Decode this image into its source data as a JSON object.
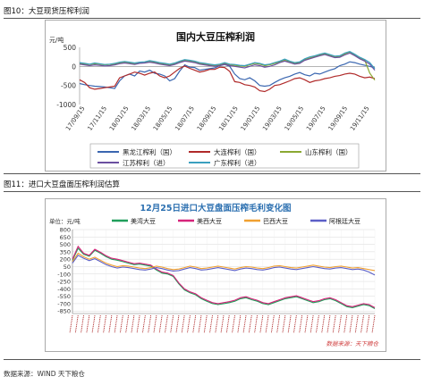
{
  "figure1": {
    "caption": "图10：大豆现货压榨利润",
    "chart_data": {
      "type": "line",
      "title": "国内大豆压榨利润",
      "ylabel": "元/吨",
      "ylim": [
        -1000,
        500
      ],
      "yticks": [
        500,
        0,
        -500,
        -1000
      ],
      "xticks": [
        "17/09/15",
        "17/11/15",
        "18/01/15",
        "18/03/15",
        "18/05/15",
        "18/07/15",
        "18/09/15",
        "18/11/15",
        "19/01/15",
        "19/03/15",
        "19/05/15",
        "19/07/15",
        "19/09/15",
        "19/11/15"
      ],
      "grid": false,
      "legend_position": "bottom",
      "series": [
        {
          "name": "黑龙江榨利（国）",
          "color": "#3a66b0",
          "values": [
            -450,
            -480,
            -500,
            -520,
            -530,
            -540,
            -560,
            -580,
            -380,
            -250,
            -200,
            -250,
            -120,
            -150,
            -100,
            -180,
            -200,
            -250,
            -380,
            -320,
            -120,
            40,
            -20,
            -30,
            -100,
            -80,
            -60,
            -40,
            20,
            50,
            0,
            -200,
            -320,
            -350,
            -300,
            -380,
            -500,
            -520,
            -500,
            -420,
            -350,
            -300,
            -260,
            -200,
            -160,
            -220,
            -250,
            -180,
            -200,
            -150,
            -100,
            -60,
            20,
            60,
            120,
            100,
            60,
            30,
            0,
            -40
          ]
        },
        {
          "name": "大连榨利（国）",
          "color": "#b02a2a",
          "values": [
            -350,
            -420,
            -560,
            -600,
            -580,
            -560,
            -540,
            -520,
            -300,
            -250,
            -200,
            -150,
            -180,
            -230,
            -180,
            -150,
            -250,
            -300,
            -250,
            -150,
            -50,
            10,
            -50,
            -100,
            -150,
            -120,
            -80,
            -80,
            -20,
            -30,
            -130,
            -400,
            -420,
            -480,
            -500,
            -540,
            -640,
            -660,
            -600,
            -500,
            -480,
            -430,
            -380,
            -320,
            -300,
            -350,
            -420,
            -380,
            -360,
            -320,
            -300,
            -260,
            -240,
            -200,
            -180,
            -200,
            -260,
            -300,
            -280,
            -320
          ]
        },
        {
          "name": "山东榨利（国）",
          "color": "#8aa832",
          "values": [
            80,
            60,
            50,
            70,
            60,
            40,
            50,
            60,
            90,
            110,
            90,
            70,
            90,
            100,
            130,
            110,
            80,
            60,
            40,
            70,
            120,
            160,
            140,
            120,
            80,
            60,
            40,
            20,
            40,
            80,
            40,
            30,
            10,
            0,
            40,
            80,
            60,
            20,
            40,
            80,
            120,
            160,
            120,
            80,
            100,
            180,
            220,
            260,
            300,
            330,
            290,
            250,
            260,
            330,
            380,
            300,
            220,
            160,
            -180,
            -360
          ]
        },
        {
          "name": "江苏榨利（进）",
          "color": "#6b4fa0",
          "values": [
            60,
            40,
            20,
            40,
            30,
            10,
            20,
            40,
            70,
            90,
            70,
            50,
            80,
            90,
            110,
            90,
            60,
            40,
            20,
            50,
            100,
            140,
            120,
            100,
            60,
            40,
            20,
            0,
            20,
            60,
            20,
            0,
            -20,
            -40,
            0,
            40,
            20,
            -20,
            0,
            40,
            100,
            140,
            100,
            60,
            80,
            160,
            200,
            240,
            280,
            310,
            270,
            230,
            240,
            300,
            350,
            280,
            200,
            140,
            60,
            -100
          ]
        },
        {
          "name": "广东榨利（进）",
          "color": "#3a9fbf",
          "values": [
            100,
            80,
            60,
            90,
            70,
            50,
            60,
            80,
            110,
            130,
            110,
            90,
            110,
            120,
            150,
            130,
            100,
            80,
            60,
            90,
            140,
            180,
            160,
            140,
            100,
            80,
            60,
            40,
            60,
            100,
            60,
            50,
            30,
            20,
            60,
            100,
            80,
            40,
            60,
            100,
            140,
            190,
            140,
            100,
            120,
            200,
            250,
            280,
            320,
            350,
            310,
            270,
            280,
            350,
            390,
            320,
            240,
            180,
            100,
            -60
          ]
        }
      ]
    }
  },
  "figure2": {
    "caption": "图11：进口大豆盘面压榨利润估算",
    "chart_data": {
      "type": "line",
      "title": "12月25日进口大豆盘面压榨毛利变化图",
      "ylabel": "单位：元/吨",
      "ylim": [
        -900,
        800
      ],
      "yticks": [
        800,
        650,
        500,
        350,
        200,
        50,
        -100,
        -250,
        -400,
        -550,
        -700,
        -850
      ],
      "grid": true,
      "legend_position": "top",
      "watermark": "数据来源：天下粮仓",
      "series": [
        {
          "name": "美湾大豆",
          "color": "#1f9e5a",
          "values": [
            180,
            420,
            300,
            260,
            380,
            320,
            250,
            200,
            180,
            150,
            120,
            90,
            100,
            80,
            60,
            -20,
            -80,
            -100,
            -150,
            -300,
            -420,
            -480,
            -520,
            -600,
            -650,
            -700,
            -720,
            -700,
            -680,
            -650,
            -600,
            -580,
            -620,
            -650,
            -700,
            -720,
            -680,
            -640,
            -600,
            -580,
            -560,
            -600,
            -640,
            -680,
            -660,
            -620,
            -600,
            -640,
            -700,
            -760,
            -780,
            -750,
            -720,
            -740,
            -800
          ]
        },
        {
          "name": "美西大豆",
          "color": "#d6237a",
          "values": [
            200,
            460,
            320,
            280,
            400,
            340,
            270,
            220,
            200,
            170,
            140,
            110,
            120,
            100,
            80,
            0,
            -60,
            -80,
            -130,
            -280,
            -400,
            -460,
            -500,
            -580,
            -630,
            -680,
            -700,
            -680,
            -660,
            -630,
            -580,
            -560,
            -600,
            -630,
            -680,
            -700,
            -660,
            -620,
            -580,
            -560,
            -540,
            -580,
            -620,
            -660,
            -640,
            -600,
            -580,
            -620,
            -680,
            -740,
            -760,
            -730,
            -700,
            -720,
            -780
          ]
        },
        {
          "name": "巴西大豆",
          "color": "#f0a030",
          "values": [
            150,
            320,
            250,
            200,
            240,
            180,
            120,
            80,
            50,
            70,
            60,
            40,
            20,
            10,
            30,
            60,
            40,
            10,
            -10,
            0,
            30,
            60,
            40,
            10,
            20,
            40,
            60,
            40,
            20,
            0,
            30,
            50,
            40,
            20,
            10,
            30,
            60,
            70,
            50,
            30,
            20,
            40,
            60,
            80,
            60,
            40,
            30,
            50,
            60,
            40,
            20,
            30,
            10,
            -10,
            -30
          ]
        },
        {
          "name": "阿根廷大豆",
          "color": "#5b5fc7",
          "values": [
            120,
            280,
            220,
            170,
            210,
            150,
            90,
            50,
            20,
            40,
            30,
            10,
            -10,
            -20,
            0,
            30,
            10,
            -20,
            -40,
            -30,
            0,
            30,
            10,
            -20,
            -10,
            10,
            30,
            10,
            -10,
            -30,
            0,
            20,
            10,
            -10,
            -20,
            0,
            30,
            40,
            20,
            0,
            -10,
            10,
            30,
            50,
            30,
            10,
            0,
            20,
            30,
            10,
            -10,
            0,
            -20,
            -60,
            -120
          ]
        }
      ]
    }
  },
  "source": "数据来源：WIND 天下粮仓"
}
